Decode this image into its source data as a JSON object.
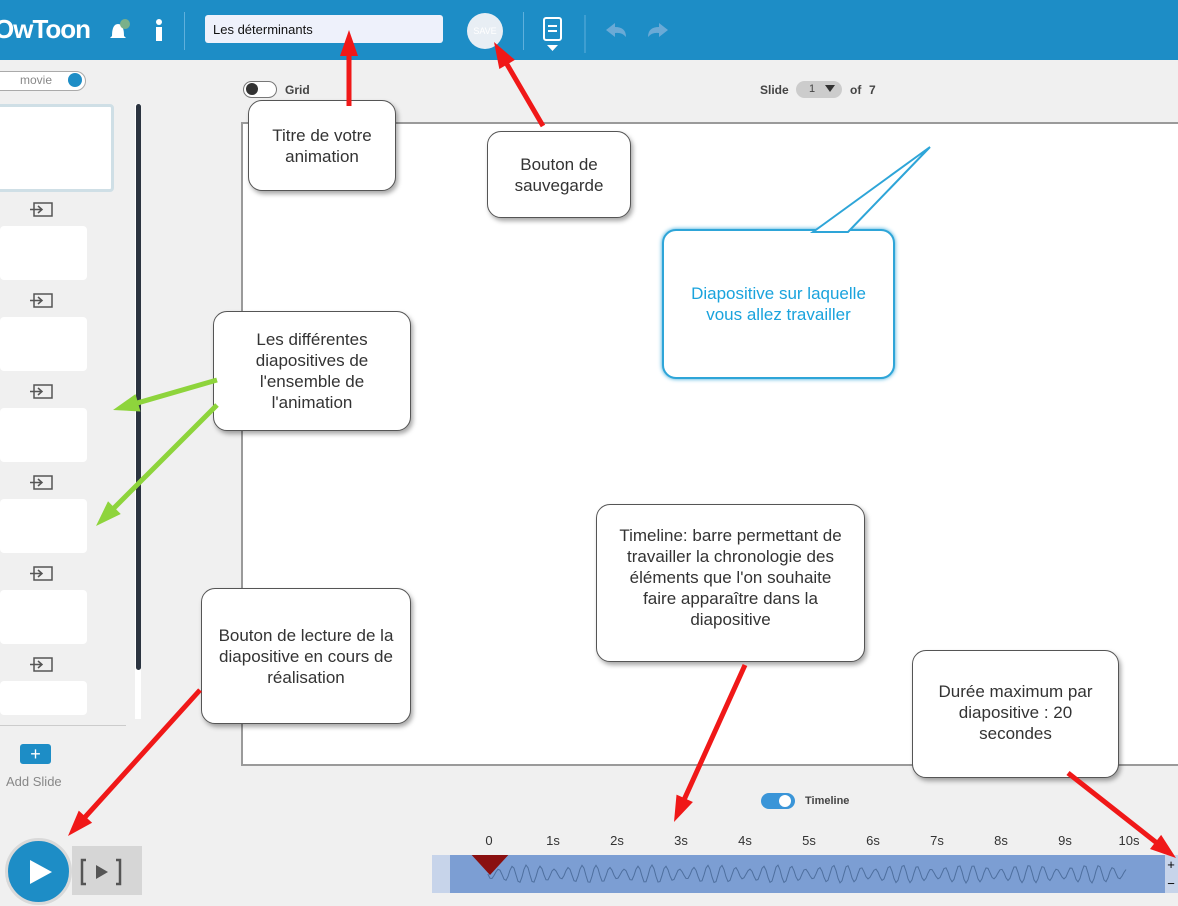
{
  "toolbar": {
    "logo": "OwToon",
    "title_input": "Les déterminants",
    "save_button": "SAVE"
  },
  "left_panel": {
    "mode_toggle": "movie",
    "add_slide": "Add Slide"
  },
  "stage": {
    "grid_label": "Grid",
    "slide_label": "Slide",
    "slide_current": 1,
    "slide_of": "of",
    "slide_total": 7
  },
  "timeline": {
    "label": "Timeline",
    "ticks": [
      "0",
      "1s",
      "2s",
      "3s",
      "4s",
      "5s",
      "6s",
      "7s",
      "8s",
      "9s",
      "10s"
    ]
  },
  "callouts": [
    {
      "text": "Titre de votre animation"
    },
    {
      "text": "Bouton de sauvegarde"
    },
    {
      "text": "Diapositive sur laquelle vous allez travailler"
    },
    {
      "text": "Les différentes diapositives de l'ensemble de l'animation"
    },
    {
      "text": "Bouton de lecture de la diapositive en cours de réalisation"
    },
    {
      "text": "Timeline: barre permettant de travailler la chronologie des éléments que l'on souhaite faire apparaître dans la diapositive"
    },
    {
      "text": "Durée maximum par diapositive : 20 secondes"
    }
  ]
}
